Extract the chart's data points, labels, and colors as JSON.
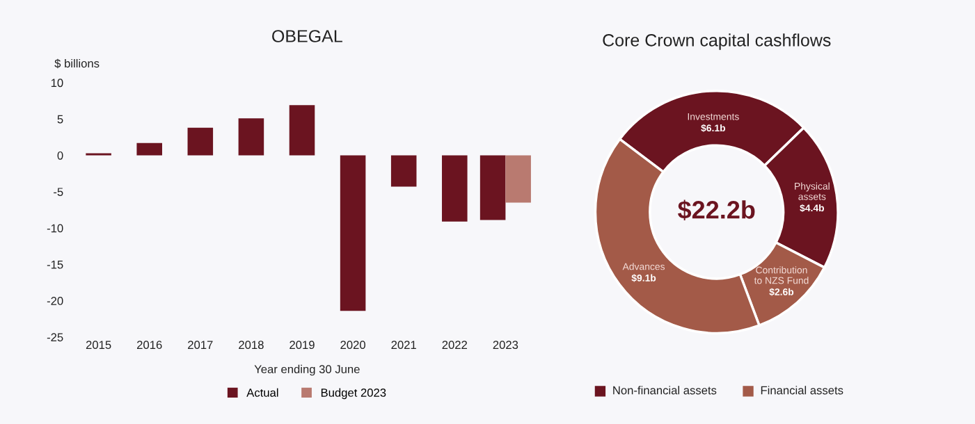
{
  "chart_data": [
    {
      "type": "bar",
      "title": "OBEGAL",
      "ylabel": "$ billions",
      "xlabel": "Year ending 30 June",
      "categories": [
        "2015",
        "2016",
        "2017",
        "2018",
        "2019",
        "2020",
        "2021",
        "2022",
        "2023"
      ],
      "series": [
        {
          "name": "Actual",
          "color": "#6b1420",
          "values": [
            0.3,
            1.7,
            3.8,
            5.1,
            6.9,
            -21.4,
            -4.3,
            -9.1,
            -8.9
          ]
        },
        {
          "name": "Budget 2023",
          "color": "#b97a70",
          "values": [
            null,
            null,
            null,
            null,
            null,
            null,
            null,
            null,
            -6.5
          ]
        }
      ],
      "ylim": [
        -25,
        10
      ],
      "yticks": [
        -25,
        -20,
        -15,
        -10,
        -5,
        0,
        5,
        10
      ],
      "grid": false,
      "legend": "bottom"
    },
    {
      "type": "donut",
      "title": "Core Crown capital cashflows",
      "categories": [
        "Investments",
        "Physical assets",
        "Contribution to NZS Fund",
        "Advances"
      ],
      "values": [
        6.1,
        4.4,
        2.6,
        9.1
      ],
      "colors": [
        "#6b1420",
        "#6b1420",
        "#a35a48",
        "#a35a48"
      ],
      "value_labels": [
        "$6.1b",
        "$4.4b",
        "$2.6b",
        "$9.1b"
      ],
      "annotations": [
        "$22.2b",
        "Non-financial assets",
        "Financial assets"
      ]
    }
  ]
}
